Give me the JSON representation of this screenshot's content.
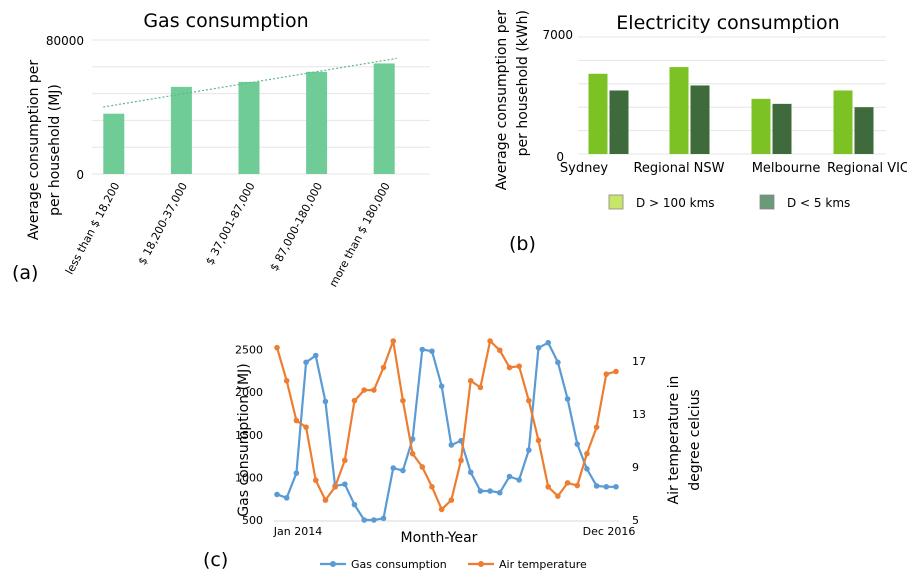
{
  "chart_data": [
    {
      "type": "bar",
      "panel": "(a)",
      "title": "Gas consumption",
      "ylabel": "Average consumption per per household (MJ)",
      "ylabel_lines": [
        "Average consumption per",
        "per household (MJ)"
      ],
      "xlabel": "",
      "ylim": [
        0,
        80000
      ],
      "yticks": [
        "0",
        "80000"
      ],
      "categories": [
        "less than $ 18,200",
        "$ 18,200-37,000",
        "$ 37,001-87,000",
        "$ 87,000-180,000",
        "more than $ 180,000"
      ],
      "values": [
        36000,
        52000,
        55000,
        61000,
        66000
      ],
      "trendline": [
        40000,
        69000
      ],
      "bar_color": "#70cc96",
      "trend_color": "#5fb889"
    },
    {
      "type": "bar",
      "panel": "(b)",
      "title": "Electricity consumption",
      "ylabel": "Average consumption per per household (kWh)",
      "ylabel_lines": [
        "Average consumption per",
        "per household (kWh)"
      ],
      "xlabel": "",
      "ylim": [
        0,
        7000
      ],
      "yticks": [
        "0",
        "7000"
      ],
      "categories": [
        "Sydney",
        "Regional NSW",
        "Melbourne",
        "Regional VIC"
      ],
      "series": [
        {
          "name": "D > 100 kms",
          "values": [
            4800,
            5200,
            3300,
            3800
          ],
          "color": "#7cc224",
          "legend_color": "#c8e66a"
        },
        {
          "name": "D < 5 kms",
          "values": [
            3800,
            4100,
            3000,
            2800
          ],
          "color": "#3f6b3c",
          "legend_color": "#6a9a7a"
        }
      ],
      "legend_position": "bottom"
    },
    {
      "type": "line",
      "panel": "(c)",
      "xlabel": "Month-Year",
      "ylabel": "Gas consumption (MJ)",
      "y2label": "Air temperature in degree celcius",
      "y2label_lines": [
        "Air temperature in",
        "degree celcius"
      ],
      "x_start_label": "Jan 2014",
      "x_end_label": "Dec 2016",
      "ylim": [
        500,
        2600
      ],
      "yticks": [
        "500",
        "1000",
        "1500",
        "2000",
        "2500"
      ],
      "y2lim": [
        5,
        18.5
      ],
      "y2ticks": [
        "5",
        "9",
        "13",
        "17"
      ],
      "series": [
        {
          "name": "Gas consumption",
          "axis": "left",
          "color": "#5b9bd5",
          "values": [
            800,
            760,
            1050,
            2350,
            2430,
            1890,
            900,
            920,
            680,
            500,
            500,
            520,
            1110,
            1080,
            1450,
            2500,
            2480,
            2070,
            1380,
            1430,
            1060,
            840,
            840,
            820,
            1010,
            970,
            1320,
            2520,
            2580,
            2350,
            1920,
            1390,
            1100,
            900,
            890,
            890
          ]
        },
        {
          "name": "Air temperature",
          "axis": "right",
          "color": "#ed7d31",
          "values": [
            18.0,
            15.5,
            12.5,
            12.0,
            8.0,
            6.5,
            7.5,
            9.5,
            14.0,
            14.8,
            14.8,
            16.5,
            18.5,
            14.0,
            10.0,
            9.0,
            7.5,
            5.8,
            6.5,
            9.5,
            15.5,
            15.0,
            18.5,
            17.8,
            16.5,
            16.6,
            14.0,
            11.0,
            7.5,
            6.8,
            7.8,
            7.6,
            10.0,
            12.0,
            16.0,
            16.2
          ]
        }
      ],
      "legend_position": "bottom"
    }
  ]
}
